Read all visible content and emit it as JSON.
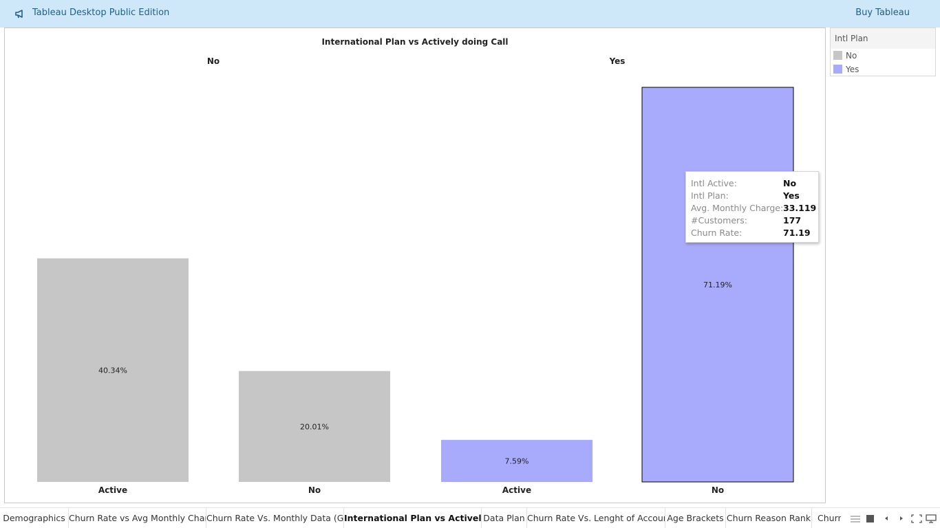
{
  "topbar": {
    "icon": "megaphone-icon",
    "title": "Tableau Desktop Public Edition",
    "buy_label": "Buy Tableau"
  },
  "colors": {
    "no": "#c6c6c6",
    "yes": "#a8aafc",
    "topbar": "#cfe8f9",
    "link": "#1f5f8b"
  },
  "chart_data": {
    "type": "bar",
    "title": "International Plan vs Actively doing Call",
    "panes": [
      "No",
      "Yes"
    ],
    "categories": [
      "Active",
      "No",
      "Active",
      "No"
    ],
    "series": [
      {
        "name": "No",
        "values": [
          40.34,
          20.01,
          null,
          null
        ]
      },
      {
        "name": "Yes",
        "values": [
          null,
          null,
          7.59,
          71.19
        ]
      }
    ],
    "values": [
      40.34,
      20.01,
      7.59,
      71.19
    ],
    "bar_groups": [
      "No",
      "No",
      "Yes",
      "Yes"
    ],
    "data_labels": [
      "40.34%",
      "20.01%",
      "7.59%",
      "71.19%"
    ],
    "ylim": [
      0,
      71.19
    ],
    "grid": false,
    "legend_position": "right"
  },
  "legend": {
    "title": "Intl Plan",
    "items": [
      {
        "label": "No",
        "color": "#c6c6c6"
      },
      {
        "label": "Yes",
        "color": "#a8aafc"
      }
    ]
  },
  "tooltip": {
    "rows": [
      {
        "key": "Intl Active:",
        "value": "No"
      },
      {
        "key": "Intl Plan:",
        "value": "Yes"
      },
      {
        "key": "Avg. Monthly Charge:",
        "value": "33.119"
      },
      {
        "key": "#Customers:",
        "value": "177"
      },
      {
        "key": "Churn Rate:",
        "value": "71.19"
      }
    ]
  },
  "tabs": [
    {
      "label": "Demographics",
      "active": false
    },
    {
      "label": "Churn Rate vs Avg Monthly Char...",
      "active": false
    },
    {
      "label": "Churn Rate Vs. Monthly Data (GB)",
      "active": false
    },
    {
      "label": "International Plan vs Actively d...",
      "active": true
    },
    {
      "label": "Data Plan",
      "active": false
    },
    {
      "label": "Churn Rate Vs. Lenght of Account",
      "active": false
    },
    {
      "label": "Age Brackets",
      "active": false
    },
    {
      "label": "Churn Reason Rank",
      "active": false
    },
    {
      "label": "Churn",
      "active": false
    }
  ],
  "nav_icons": [
    "show-tabs-icon",
    "filmstrip-icon",
    "prev-sheet-icon",
    "next-sheet-icon",
    "fullscreen-icon",
    "presentation-icon"
  ]
}
